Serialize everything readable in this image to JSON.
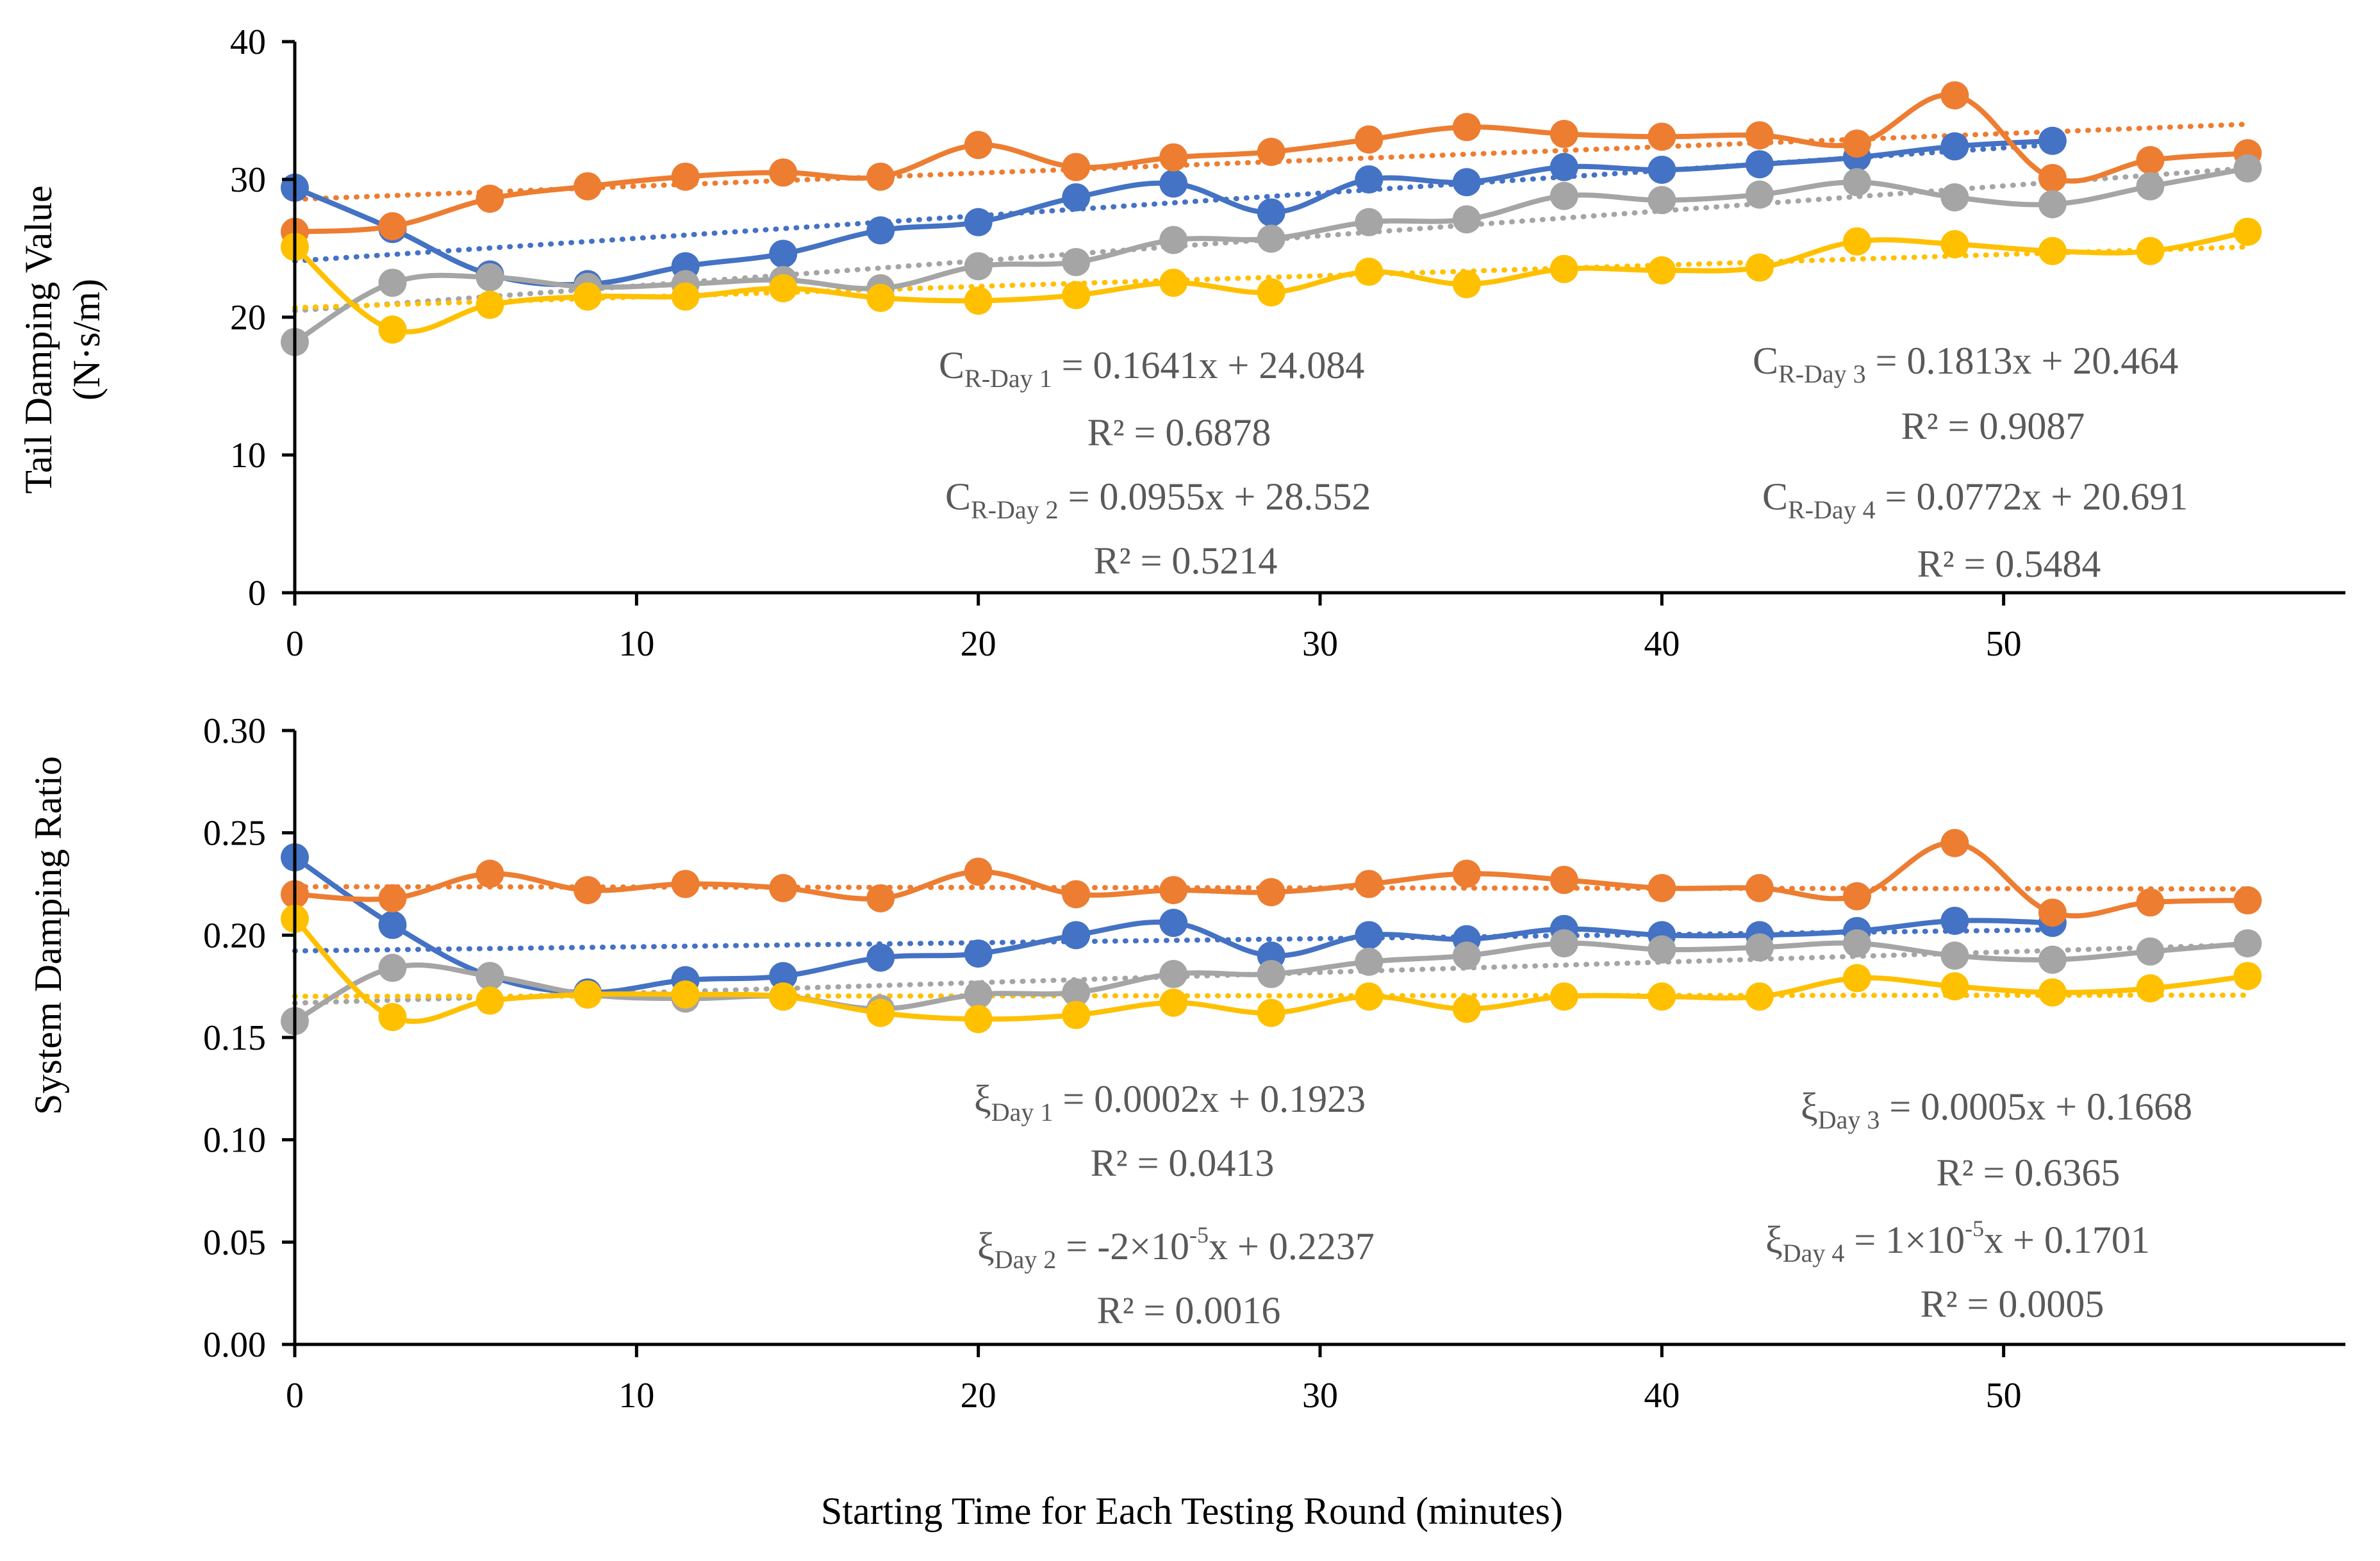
{
  "figure": {
    "xlabel": "Starting Time for Each Testing Round (minutes)",
    "colors": {
      "Day 1": "#4472C4",
      "Day 2": "#ED7D31",
      "Day 3": "#A5A5A5",
      "Day 4": "#FFC000",
      "axis": "#000000",
      "equation_text": "#595959"
    }
  },
  "chart_data": [
    {
      "type": "line",
      "title": "",
      "ylabel_lines": [
        "Tail Damping Value",
        "(N·s/m)"
      ],
      "xlim": [
        0,
        60
      ],
      "x_ticks": [
        0,
        10,
        20,
        30,
        40,
        50
      ],
      "x_tick_labels": [
        "0",
        "10",
        "20",
        "30",
        "40",
        "50"
      ],
      "ylim": [
        0,
        40
      ],
      "y_ticks": [
        0,
        10,
        20,
        30,
        40
      ],
      "y_tick_labels": [
        "0",
        "10",
        "20",
        "30",
        "40"
      ],
      "grid": false,
      "legend": "none",
      "series": [
        {
          "name": "Day 1",
          "x": [
            0,
            2.86,
            5.71,
            8.57,
            11.43,
            14.29,
            17.14,
            20,
            22.86,
            25.71,
            28.57,
            31.43,
            34.29,
            37.14,
            40,
            42.86,
            45.71,
            48.57,
            51.43
          ],
          "values": [
            29.4,
            26.4,
            23.1,
            22.4,
            23.7,
            24.6,
            26.3,
            26.9,
            28.7,
            29.7,
            27.6,
            30.0,
            29.8,
            30.9,
            30.7,
            31.1,
            31.6,
            32.4,
            32.8
          ],
          "trend": {
            "slope": 0.1641,
            "intercept": 24.084
          }
        },
        {
          "name": "Day 2",
          "x": [
            0,
            2.86,
            5.71,
            8.57,
            11.43,
            14.29,
            17.14,
            20,
            22.86,
            25.71,
            28.57,
            31.43,
            34.29,
            37.14,
            40,
            42.86,
            45.71,
            48.57,
            51.43,
            54.29,
            57.14
          ],
          "values": [
            26.2,
            26.6,
            28.6,
            29.5,
            30.2,
            30.5,
            30.2,
            32.5,
            30.9,
            31.6,
            32.0,
            32.9,
            33.8,
            33.3,
            33.1,
            33.2,
            32.6,
            36.1,
            30.1,
            31.4,
            31.9
          ],
          "trend": {
            "slope": 0.0955,
            "intercept": 28.552
          }
        },
        {
          "name": "Day 3",
          "x": [
            0,
            2.86,
            5.71,
            8.57,
            11.43,
            14.29,
            17.14,
            20,
            22.86,
            25.71,
            28.57,
            31.43,
            34.29,
            37.14,
            40,
            42.86,
            45.71,
            48.57,
            51.43,
            54.29,
            57.14
          ],
          "values": [
            18.2,
            22.5,
            22.9,
            22.2,
            22.4,
            22.7,
            22.1,
            23.7,
            24.0,
            25.6,
            25.7,
            26.9,
            27.1,
            28.8,
            28.5,
            28.9,
            29.8,
            28.7,
            28.2,
            29.5,
            30.8
          ],
          "trend": {
            "slope": 0.1813,
            "intercept": 20.464
          }
        },
        {
          "name": "Day 4",
          "x": [
            0,
            2.86,
            5.71,
            8.57,
            11.43,
            14.29,
            17.14,
            20,
            22.86,
            25.71,
            28.57,
            31.43,
            34.29,
            37.14,
            40,
            42.86,
            45.71,
            48.57,
            51.43,
            54.29,
            57.14
          ],
          "values": [
            25.1,
            19.1,
            20.9,
            21.5,
            21.5,
            22.1,
            21.4,
            21.2,
            21.6,
            22.5,
            21.8,
            23.3,
            22.4,
            23.5,
            23.4,
            23.6,
            25.5,
            25.3,
            24.8,
            24.8,
            26.2
          ],
          "trend": {
            "slope": 0.0772,
            "intercept": 20.691
          }
        }
      ],
      "annotations": [
        {
          "symbol": "C",
          "subscript": "R-Day 1",
          "rest": " = 0.1641x + 24.084",
          "r2": "R² = 0.6878"
        },
        {
          "symbol": "C",
          "subscript": "R-Day 2",
          "rest": " = 0.0955x + 28.552",
          "r2": "R² = 0.5214"
        },
        {
          "symbol": "C",
          "subscript": "R-Day 3",
          "rest": " = 0.1813x + 20.464",
          "r2": "R² = 0.9087"
        },
        {
          "symbol": "C",
          "subscript": "R-Day 4",
          "rest": " = 0.0772x + 20.691",
          "r2": "R² = 0.5484"
        }
      ]
    },
    {
      "type": "line",
      "title": "",
      "ylabel_lines": [
        "System Damping Ratio"
      ],
      "xlim": [
        0,
        60
      ],
      "x_ticks": [
        0,
        10,
        20,
        30,
        40,
        50
      ],
      "x_tick_labels": [
        "0",
        "10",
        "20",
        "30",
        "40",
        "50"
      ],
      "ylim": [
        0,
        0.3
      ],
      "y_ticks": [
        0,
        0.05,
        0.1,
        0.15,
        0.2,
        0.25,
        0.3
      ],
      "y_tick_labels": [
        "0.00",
        "0.05",
        "0.10",
        "0.15",
        "0.20",
        "0.25",
        "0.30"
      ],
      "grid": false,
      "legend": "none",
      "series": [
        {
          "name": "Day 1",
          "x": [
            0,
            2.86,
            5.71,
            8.57,
            11.43,
            14.29,
            17.14,
            20,
            22.86,
            25.71,
            28.57,
            31.43,
            34.29,
            37.14,
            40,
            42.86,
            45.71,
            48.57,
            51.43
          ],
          "values": [
            0.238,
            0.205,
            0.18,
            0.172,
            0.178,
            0.18,
            0.189,
            0.191,
            0.2,
            0.206,
            0.19,
            0.2,
            0.198,
            0.203,
            0.2,
            0.2,
            0.202,
            0.207,
            0.206
          ],
          "trend": {
            "slope": 0.0002,
            "intercept": 0.1923
          }
        },
        {
          "name": "Day 2",
          "x": [
            0,
            2.86,
            5.71,
            8.57,
            11.43,
            14.29,
            17.14,
            20,
            22.86,
            25.71,
            28.57,
            31.43,
            34.29,
            37.14,
            40,
            42.86,
            45.71,
            48.57,
            51.43,
            54.29,
            57.14
          ],
          "values": [
            0.22,
            0.218,
            0.23,
            0.222,
            0.225,
            0.223,
            0.218,
            0.231,
            0.22,
            0.222,
            0.221,
            0.225,
            0.23,
            0.227,
            0.223,
            0.223,
            0.219,
            0.245,
            0.211,
            0.216,
            0.217
          ],
          "trend": {
            "slope": -2e-05,
            "intercept": 0.2237
          }
        },
        {
          "name": "Day 3",
          "x": [
            0,
            2.86,
            5.71,
            8.57,
            11.43,
            14.29,
            17.14,
            20,
            22.86,
            25.71,
            28.57,
            31.43,
            34.29,
            37.14,
            40,
            42.86,
            45.71,
            48.57,
            51.43,
            54.29,
            57.14
          ],
          "values": [
            0.158,
            0.184,
            0.18,
            0.171,
            0.169,
            0.17,
            0.164,
            0.171,
            0.172,
            0.181,
            0.181,
            0.187,
            0.19,
            0.196,
            0.193,
            0.194,
            0.196,
            0.19,
            0.188,
            0.192,
            0.196
          ],
          "trend": {
            "slope": 0.0005,
            "intercept": 0.1668
          }
        },
        {
          "name": "Day 4",
          "x": [
            0,
            2.86,
            5.71,
            8.57,
            11.43,
            14.29,
            17.14,
            20,
            22.86,
            25.71,
            28.57,
            31.43,
            34.29,
            37.14,
            40,
            42.86,
            45.71,
            48.57,
            51.43,
            54.29,
            57.14
          ],
          "values": [
            0.208,
            0.16,
            0.168,
            0.171,
            0.171,
            0.17,
            0.162,
            0.159,
            0.161,
            0.167,
            0.162,
            0.17,
            0.164,
            0.17,
            0.17,
            0.17,
            0.179,
            0.175,
            0.172,
            0.174,
            0.18
          ],
          "trend": {
            "slope": 1e-05,
            "intercept": 0.1701
          }
        }
      ],
      "annotations": [
        {
          "symbol": "ξ",
          "subscript": "Day 1",
          "rest": " = 0.0002x + 0.1923",
          "r2": "R² = 0.0413"
        },
        {
          "symbol": "ξ",
          "subscript": "Day 2",
          "rest": " = -2×10",
          "sup": "-5",
          "rest2": "x + 0.2237",
          "r2": "R² = 0.0016"
        },
        {
          "symbol": "ξ",
          "subscript": "Day 3",
          "rest": " = 0.0005x + 0.1668",
          "r2": "R² = 0.6365"
        },
        {
          "symbol": "ξ",
          "subscript": "Day 4",
          "rest": " = 1×10",
          "sup": "-5",
          "rest2": "x + 0.1701",
          "r2": "R² = 0.0005"
        }
      ]
    }
  ]
}
